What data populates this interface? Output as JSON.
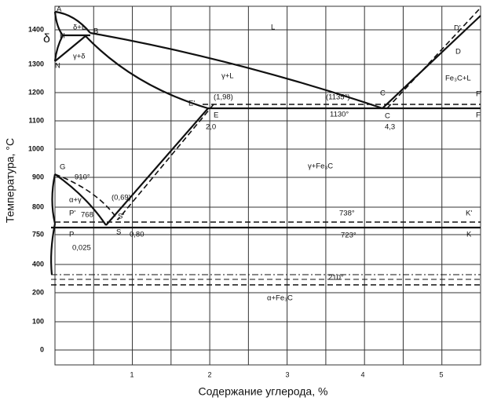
{
  "y_axis_label": "Температура, °С",
  "x_axis_label": "Содержание углерода, %",
  "yticks": [
    "1400",
    "1300",
    "1200",
    "1100",
    "1000",
    "900",
    "800",
    "750",
    "400",
    "200",
    "100",
    "0"
  ],
  "xticks": [
    "1",
    "2",
    "3",
    "4",
    "5"
  ],
  "annotations": [
    "A",
    "B",
    "H",
    "N",
    "δ",
    "δ+L",
    "γ+δ",
    "L",
    "γ+L",
    "(1,98)",
    "E'",
    "E",
    "2,0",
    "(1135°)",
    "C",
    "C",
    "1130°",
    "4,3",
    "F'",
    "F",
    "D'",
    "D",
    "Fe₃C+L",
    "γ+Fe₃C",
    "G",
    "910°",
    "(0,69)",
    "α+γ",
    "P'",
    "768",
    "S'",
    "738°",
    "K'",
    "P",
    "S",
    "0,80",
    "723°",
    "K",
    "0,025",
    "210°",
    "α+Fe₃C"
  ]
}
